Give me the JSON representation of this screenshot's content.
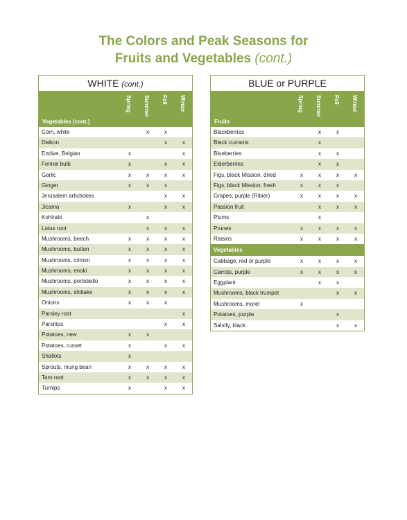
{
  "title": {
    "line1": "The Colors and Peak Seasons for",
    "line2_main": "Fruits and Vegetables",
    "line2_cont": "(cont.)"
  },
  "seasons": [
    "Spring",
    "Summer",
    "Fall",
    "Winter"
  ],
  "white": {
    "heading": "WHITE",
    "heading_cont": "(cont.)",
    "section_label": "Vegetables (cont.)",
    "rows": [
      {
        "name": "Corn, white",
        "marks": [
          "",
          "x",
          "x",
          ""
        ]
      },
      {
        "name": "Daikon",
        "marks": [
          "",
          "",
          "x",
          "x"
        ]
      },
      {
        "name": "Endive, Belgian",
        "marks": [
          "x",
          "",
          "",
          "x"
        ]
      },
      {
        "name": "Fennel bulb",
        "marks": [
          "x",
          "",
          "x",
          "x"
        ]
      },
      {
        "name": "Garlic",
        "marks": [
          "x",
          "x",
          "x",
          "x"
        ]
      },
      {
        "name": "Ginger",
        "marks": [
          "x",
          "x",
          "x",
          ""
        ]
      },
      {
        "name": "Jerusalem artichokes",
        "marks": [
          "",
          "",
          "x",
          "x"
        ]
      },
      {
        "name": "Jicama",
        "marks": [
          "x",
          "",
          "x",
          "x"
        ]
      },
      {
        "name": "Kohlrabi",
        "marks": [
          "",
          "x",
          "",
          ""
        ]
      },
      {
        "name": "Lotus root",
        "marks": [
          "",
          "x",
          "x",
          "x"
        ]
      },
      {
        "name": "Mushrooms, beech",
        "marks": [
          "x",
          "x",
          "x",
          "x"
        ]
      },
      {
        "name": "Mushrooms, button",
        "marks": [
          "x",
          "x",
          "x",
          "x"
        ]
      },
      {
        "name": "Mushrooms, crimini",
        "marks": [
          "x",
          "x",
          "x",
          "x"
        ]
      },
      {
        "name": "Mushrooms, enoki",
        "marks": [
          "x",
          "x",
          "x",
          "x"
        ]
      },
      {
        "name": "Mushrooms, portobello",
        "marks": [
          "x",
          "x",
          "x",
          "x"
        ]
      },
      {
        "name": "Mushrooms, shiitake",
        "marks": [
          "x",
          "x",
          "x",
          "x"
        ]
      },
      {
        "name": "Onions",
        "marks": [
          "x",
          "x",
          "x",
          ""
        ]
      },
      {
        "name": "Parsley root",
        "marks": [
          "",
          "",
          "",
          "x"
        ]
      },
      {
        "name": "Parsnips",
        "marks": [
          "",
          "",
          "x",
          "x"
        ]
      },
      {
        "name": "Potatoes, new",
        "marks": [
          "x",
          "x",
          "",
          ""
        ]
      },
      {
        "name": "Potatoes, russet",
        "marks": [
          "x",
          "",
          "x",
          "x"
        ]
      },
      {
        "name": "Shallots",
        "marks": [
          "x",
          "",
          "",
          ""
        ]
      },
      {
        "name": "Sprouts, mung bean",
        "marks": [
          "x",
          "x",
          "x",
          "x"
        ]
      },
      {
        "name": "Taro root",
        "marks": [
          "x",
          "x",
          "x",
          "x"
        ]
      },
      {
        "name": "Turnips",
        "marks": [
          "x",
          "",
          "x",
          "x"
        ]
      }
    ]
  },
  "blue": {
    "heading": "BLUE or PURPLE",
    "section_label": "Fruits",
    "fruits": [
      {
        "name": "Blackberries",
        "marks": [
          "",
          "x",
          "x",
          ""
        ]
      },
      {
        "name": "Black currants",
        "marks": [
          "",
          "x",
          "",
          ""
        ]
      },
      {
        "name": "Blueberries",
        "marks": [
          "",
          "x",
          "x",
          ""
        ]
      },
      {
        "name": "Elderberries",
        "marks": [
          "",
          "x",
          "x",
          ""
        ]
      },
      {
        "name": "Figs, black Mission, dried",
        "marks": [
          "x",
          "x",
          "x",
          "x"
        ]
      },
      {
        "name": "Figs, black Mission, fresh",
        "marks": [
          "x",
          "x",
          "x",
          ""
        ]
      },
      {
        "name": "Grapes, purple (Ribier)",
        "marks": [
          "x",
          "x",
          "x",
          "x"
        ]
      },
      {
        "name": "Passion fruit",
        "marks": [
          "",
          "x",
          "x",
          "x"
        ]
      },
      {
        "name": "Plums",
        "marks": [
          "",
          "x",
          "",
          ""
        ]
      },
      {
        "name": "Prunes",
        "marks": [
          "x",
          "x",
          "x",
          "x"
        ]
      },
      {
        "name": "Raisins",
        "marks": [
          "x",
          "x",
          "x",
          "x"
        ]
      }
    ],
    "veg_label": "Vegetables",
    "vegetables": [
      {
        "name": "Cabbage, red or purple",
        "marks": [
          "x",
          "x",
          "x",
          "x"
        ]
      },
      {
        "name": "Carrots, purple",
        "marks": [
          "x",
          "x",
          "x",
          "x"
        ]
      },
      {
        "name": "Eggplant",
        "marks": [
          "",
          "x",
          "x",
          ""
        ]
      },
      {
        "name": "Mushrooms, black trumpet",
        "marks": [
          "",
          "",
          "x",
          "x"
        ]
      },
      {
        "name": "Mushrooms, morel",
        "marks": [
          "x",
          "",
          "",
          ""
        ]
      },
      {
        "name": "Potatoes, purple",
        "marks": [
          "",
          "",
          "x",
          ""
        ]
      },
      {
        "name": "Salsify, black",
        "marks": [
          "",
          "",
          "x",
          "x"
        ]
      }
    ]
  },
  "colors": {
    "accent": "#8aa64a",
    "stripe": "#dfe6cc"
  }
}
